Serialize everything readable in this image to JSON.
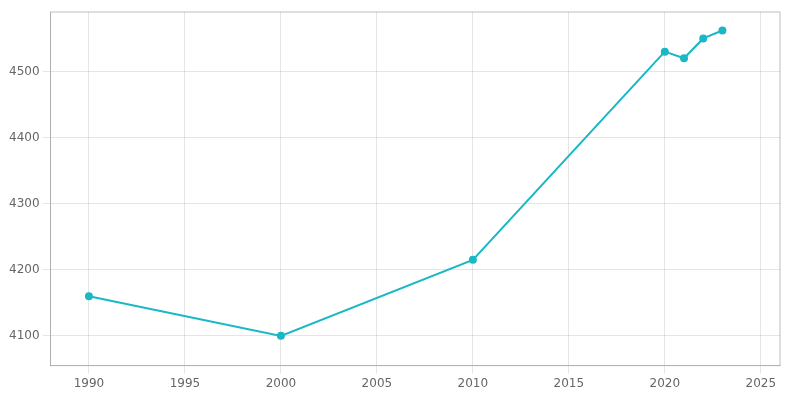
{
  "chart_data": {
    "type": "line",
    "x": [
      1990,
      2000,
      2010,
      2020,
      2021,
      2022,
      2023
    ],
    "values": [
      4160,
      4100,
      4215,
      4530,
      4520,
      4550,
      4562
    ],
    "color": "#1ab8c4",
    "marker": "circle",
    "xlim": [
      1988,
      2026
    ],
    "ylim": [
      4055,
      4590
    ],
    "xticks": [
      1990,
      1995,
      2000,
      2005,
      2010,
      2015,
      2020,
      2025
    ],
    "yticks": [
      4100,
      4200,
      4300,
      4400,
      4500
    ],
    "grid": true
  }
}
